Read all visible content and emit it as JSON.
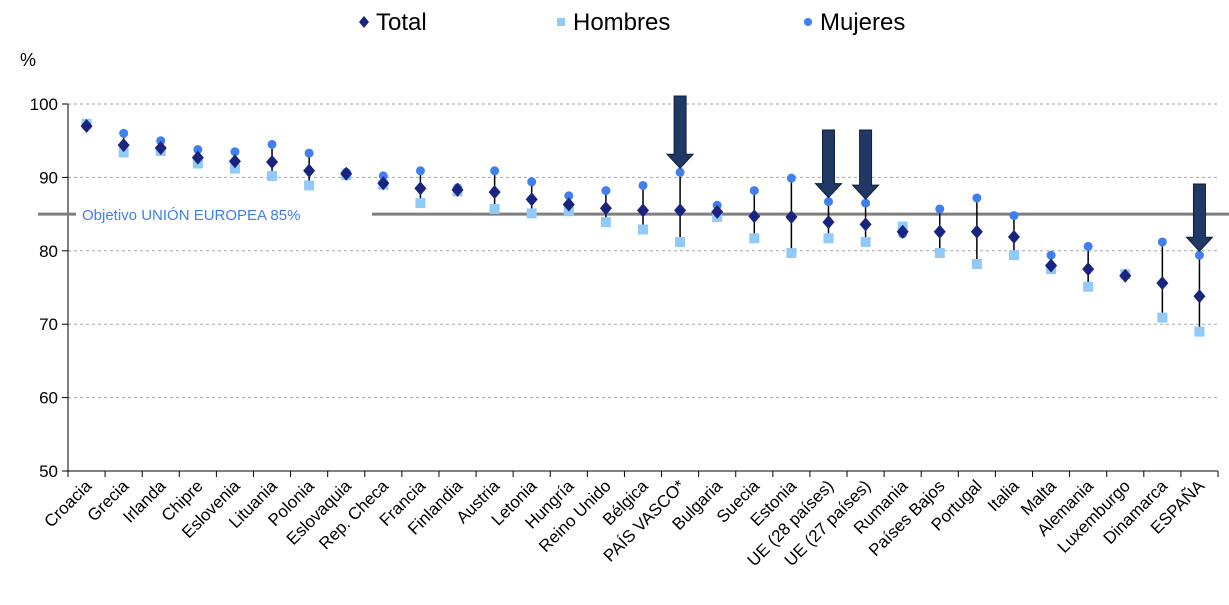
{
  "chart_data": {
    "type": "scatter",
    "y_unit": "%",
    "ylim": [
      50,
      100
    ],
    "yticks": [
      "50",
      "60",
      "70",
      "80",
      "90",
      "100"
    ],
    "grid": true,
    "legend_position": "top-center",
    "categories": [
      "Croacia",
      "Grecia",
      "Irlanda",
      "Chipre",
      "Eslovenia",
      "Lituania",
      "Polonia",
      "Eslovaquia",
      "Rep. Checa",
      "Francia",
      "Finlandia",
      "Austria",
      "Letonia",
      "Hungría",
      "Reino Unido",
      "Bélgica",
      "PAÍS VASCO*",
      "Bulgaria",
      "Suecia",
      "Estonia",
      "UE (28 países)",
      "UE (27 países)",
      "Rumania",
      "Países Bajos",
      "Portugal",
      "Italia",
      "Malta",
      "Alemania",
      "Luxemburgo",
      "Dinamarca",
      "ESPAÑA"
    ],
    "series": [
      {
        "name": "Total",
        "color": "#1a237e",
        "marker": "diamond",
        "values": [
          97.0,
          94.4,
          94.0,
          92.7,
          92.2,
          92.1,
          90.9,
          90.5,
          89.2,
          88.5,
          88.3,
          88.0,
          87.0,
          86.3,
          85.8,
          85.5,
          85.5,
          85.3,
          84.7,
          84.6,
          83.9,
          83.6,
          82.6,
          82.6,
          82.6,
          81.9,
          78.0,
          77.5,
          76.6,
          75.6,
          73.8
        ]
      },
      {
        "name": "Hombres",
        "color": "#90caf9",
        "marker": "square",
        "values": [
          97.3,
          93.4,
          93.6,
          91.9,
          91.2,
          90.2,
          88.9,
          90.3,
          89.0,
          86.5,
          88.1,
          85.7,
          85.1,
          85.4,
          83.9,
          82.9,
          81.2,
          84.6,
          81.7,
          79.7,
          81.7,
          81.2,
          83.3,
          79.7,
          78.2,
          79.4,
          77.5,
          75.1,
          76.8,
          70.9,
          69.0
        ]
      },
      {
        "name": "Mujeres",
        "color": "#3f7ff0",
        "marker": "circle",
        "values": [
          97.0,
          96.0,
          95.0,
          93.8,
          93.5,
          94.5,
          93.3,
          90.7,
          90.2,
          90.9,
          88.6,
          90.9,
          89.4,
          87.5,
          88.2,
          88.9,
          90.7,
          86.2,
          88.2,
          89.9,
          86.7,
          86.5,
          82.3,
          85.7,
          87.2,
          84.8,
          79.4,
          80.6,
          76.6,
          81.2,
          79.4
        ]
      }
    ],
    "target": {
      "value": 85,
      "label": "Objetivo UNIÓN  EUROPEA   85%",
      "color": "#7f7f7f",
      "text_color": "#3f7ff0"
    },
    "arrow_categories": [
      "PAÍS VASCO*",
      "UE (28 países)",
      "UE (27 países)",
      "ESPAÑA"
    ],
    "arrow_color": "#1f3864"
  }
}
